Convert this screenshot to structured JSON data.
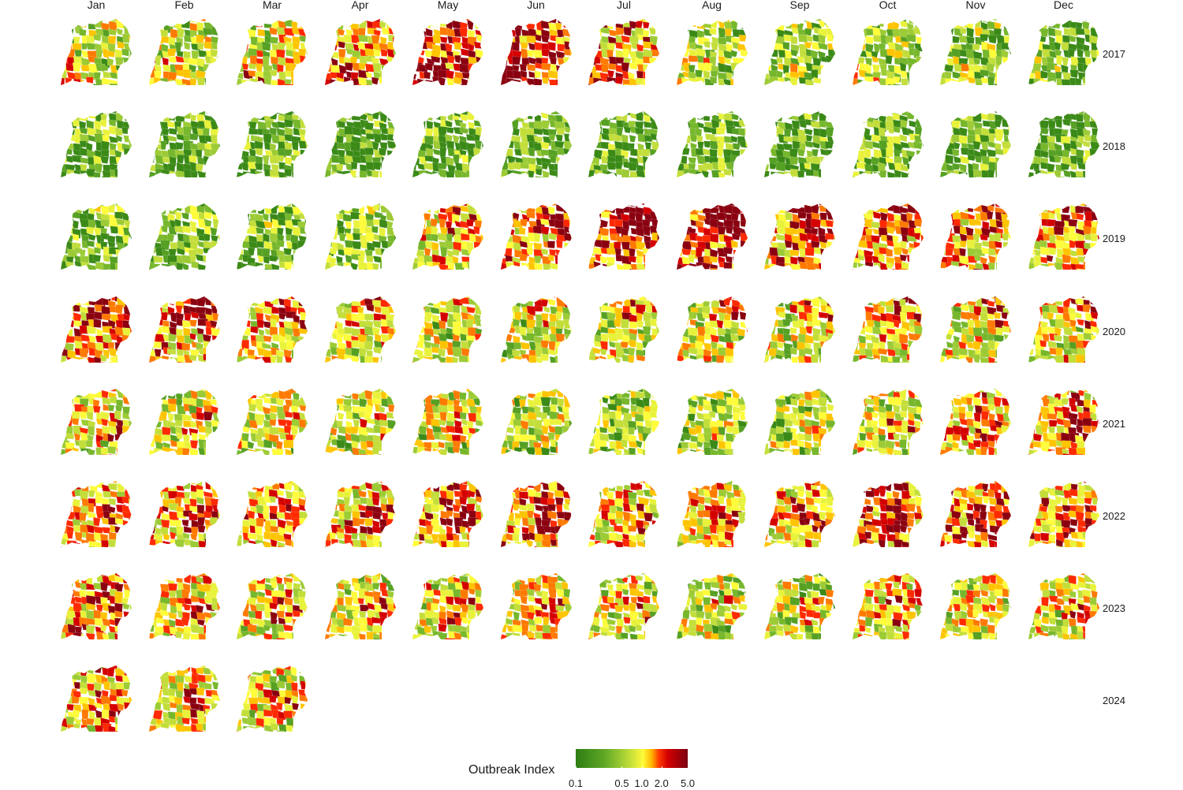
{
  "chart_data": {
    "type": "heatmap",
    "title": "",
    "facet_columns": [
      "Jan",
      "Feb",
      "Mar",
      "Apr",
      "May",
      "Jun",
      "Jul",
      "Aug",
      "Sep",
      "Oct",
      "Nov",
      "Dec"
    ],
    "facet_rows": [
      "2017",
      "2018",
      "2019",
      "2020",
      "2021",
      "2022",
      "2023",
      "2024"
    ],
    "value_description": "Outbreak Index per district (choropleth maps of Uganda)",
    "colorscale": {
      "title": "Outbreak Index",
      "scale": "log",
      "breaks": [
        0.1,
        0.5,
        1.0,
        2.0,
        5.0
      ],
      "tick_labels": [
        "0.1",
        "0.5",
        "1.0",
        "2.0",
        "5.0"
      ],
      "colors": [
        "#2e7d14",
        "#5ea624",
        "#a4cf34",
        "#fffc3a",
        "#ff3d00",
        "#d40000",
        "#7a0010"
      ]
    },
    "panels_2024_available": [
      "Jan",
      "Feb",
      "Mar"
    ],
    "panel_intensity": [
      [
        0.45,
        0.45,
        0.5,
        0.65,
        0.9,
        0.85,
        0.7,
        0.35,
        0.3,
        0.35,
        0.3,
        0.25
      ],
      [
        0.15,
        0.12,
        0.12,
        0.12,
        0.15,
        0.15,
        0.1,
        0.1,
        0.1,
        0.15,
        0.15,
        0.1
      ],
      [
        0.2,
        0.2,
        0.2,
        0.25,
        0.55,
        0.7,
        0.9,
        0.9,
        0.75,
        0.7,
        0.7,
        0.65
      ],
      [
        0.75,
        0.7,
        0.6,
        0.55,
        0.45,
        0.45,
        0.5,
        0.5,
        0.5,
        0.55,
        0.55,
        0.55
      ],
      [
        0.55,
        0.5,
        0.45,
        0.45,
        0.45,
        0.4,
        0.35,
        0.35,
        0.4,
        0.5,
        0.65,
        0.65
      ],
      [
        0.7,
        0.7,
        0.65,
        0.65,
        0.75,
        0.75,
        0.6,
        0.6,
        0.65,
        0.8,
        0.8,
        0.7
      ],
      [
        0.7,
        0.6,
        0.55,
        0.5,
        0.55,
        0.55,
        0.5,
        0.45,
        0.45,
        0.6,
        0.5,
        0.55
      ],
      [
        0.65,
        0.6,
        0.55,
        null,
        null,
        null,
        null,
        null,
        null,
        null,
        null,
        null
      ]
    ]
  }
}
